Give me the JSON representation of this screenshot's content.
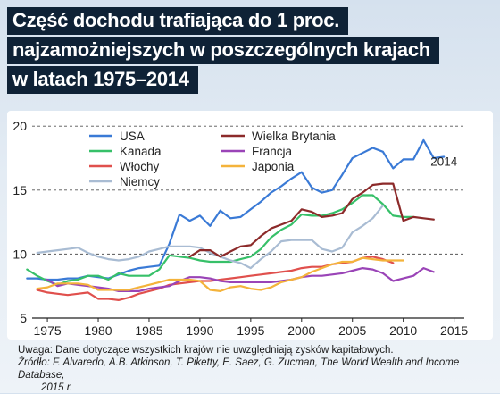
{
  "title_lines": [
    "Część dochodu trafiająca do 1 proc.",
    "najzamożniejszych w poszczególnych krajach",
    "w latach 1975–2014"
  ],
  "note": "Uwaga: Dane dotyczące wszystkich krajów nie uwzględniają zysków kapitałowych.",
  "source_line1": "Źródło: F. Alvaredo, A.B. Atkinson, T. Piketty, E. Saez, G. Zucman, The World Wealth and Income Database,",
  "source_line2": "2015 r.",
  "chart_data": {
    "type": "line",
    "x_ticks": [
      "1975",
      "1980",
      "1985",
      "1990",
      "1995",
      "2000",
      "2005",
      "2010",
      "2015"
    ],
    "y_ticks": [
      "5",
      "10",
      "15",
      "20"
    ],
    "xlim": [
      1973.5,
      2016
    ],
    "ylim": [
      5,
      20.5
    ],
    "grid": "dashed horizontal",
    "legend": "top-left",
    "annotation": "2014",
    "series": [
      {
        "name": "USA",
        "color": "#3a7ad6",
        "x": [
          1973,
          1974,
          1975,
          1976,
          1977,
          1978,
          1979,
          1980,
          1981,
          1982,
          1983,
          1984,
          1985,
          1986,
          1987,
          1988,
          1989,
          1990,
          1991,
          1992,
          1993,
          1994,
          1995,
          1996,
          1997,
          1998,
          1999,
          2000,
          2001,
          2002,
          2003,
          2004,
          2005,
          2006,
          2007,
          2008,
          2009,
          2010,
          2011,
          2012,
          2013,
          2014
        ],
        "y": [
          8.1,
          8.1,
          8.0,
          8.0,
          8.1,
          8.1,
          8.3,
          8.2,
          8.1,
          8.4,
          8.7,
          8.9,
          9.0,
          9.1,
          10.8,
          13.1,
          12.6,
          13.0,
          12.2,
          13.4,
          12.8,
          12.9,
          13.5,
          14.1,
          14.8,
          15.3,
          15.9,
          16.4,
          15.2,
          14.8,
          15.0,
          16.2,
          17.5,
          17.9,
          18.3,
          18.0,
          16.7,
          17.4,
          17.4,
          18.9,
          17.5,
          17.6
        ]
      },
      {
        "name": "Kanada",
        "color": "#37c069",
        "x": [
          1973,
          1974,
          1975,
          1976,
          1977,
          1978,
          1979,
          1980,
          1981,
          1982,
          1983,
          1984,
          1985,
          1986,
          1987,
          1988,
          1989,
          1990,
          1991,
          1992,
          1993,
          1994,
          1995,
          1996,
          1997,
          1998,
          1999,
          2000,
          2001,
          2002,
          2003,
          2004,
          2005,
          2006,
          2007,
          2008,
          2009,
          2010,
          2011
        ],
        "y": [
          8.8,
          8.3,
          7.9,
          7.6,
          7.9,
          8.0,
          8.3,
          8.3,
          8.0,
          8.5,
          8.3,
          8.3,
          8.3,
          8.8,
          9.9,
          9.8,
          9.7,
          9.5,
          9.4,
          9.4,
          9.4,
          9.6,
          9.8,
          10.4,
          11.3,
          11.9,
          12.3,
          13.1,
          13.0,
          13.0,
          13.2,
          13.5,
          14.0,
          14.6,
          14.6,
          13.9,
          13.0,
          12.9,
          12.9
        ]
      },
      {
        "name": "Włochy",
        "color": "#e0504d",
        "x": [
          1974,
          1975,
          1976,
          1977,
          1978,
          1979,
          1980,
          1981,
          1982,
          1983,
          1984,
          1985,
          1986,
          1987,
          1988,
          1989,
          1990,
          1991,
          1992,
          1993,
          1994,
          1995,
          1996,
          1997,
          1998,
          1999,
          2000,
          2001,
          2002,
          2003,
          2004,
          2005,
          2006,
          2007,
          2008,
          2009
        ],
        "y": [
          7.2,
          7.0,
          6.9,
          6.8,
          6.9,
          7.0,
          6.5,
          6.5,
          6.4,
          6.6,
          6.9,
          7.1,
          7.3,
          7.6,
          7.7,
          7.8,
          7.9,
          7.9,
          8.0,
          8.1,
          8.2,
          8.3,
          8.4,
          8.5,
          8.6,
          8.7,
          8.9,
          9.0,
          9.0,
          9.2,
          9.3,
          9.4,
          9.7,
          9.8,
          9.6,
          9.3
        ]
      },
      {
        "name": "Niemcy",
        "color": "#a9bcd3",
        "x": [
          1974,
          1975,
          1976,
          1977,
          1978,
          1979,
          1980,
          1981,
          1982,
          1983,
          1984,
          1985,
          1986,
          1987,
          1988,
          1989,
          1990,
          1991,
          1992,
          1993,
          1994,
          1995,
          1996,
          1997,
          1998,
          1999,
          2000,
          2001,
          2002,
          2003,
          2004,
          2005,
          2006,
          2007,
          2008
        ],
        "y": [
          10.1,
          10.2,
          10.3,
          10.4,
          10.5,
          10.1,
          9.8,
          9.6,
          9.5,
          9.6,
          9.8,
          10.2,
          10.4,
          10.6,
          10.6,
          10.6,
          10.5,
          10.1,
          9.8,
          9.5,
          9.3,
          8.9,
          9.6,
          10.2,
          11.0,
          11.1,
          11.1,
          11.1,
          10.4,
          10.2,
          10.5,
          11.7,
          12.2,
          12.8,
          13.8
        ]
      },
      {
        "name": "Wielka Brytania",
        "color": "#8c2a2a",
        "x": [
          1989,
          1990,
          1991,
          1992,
          1993,
          1994,
          1995,
          1996,
          1997,
          1998,
          1999,
          2000,
          2001,
          2002,
          2003,
          2004,
          2005,
          2006,
          2007,
          2008,
          2009,
          2010,
          2011,
          2012,
          2013
        ],
        "y": [
          9.8,
          10.3,
          10.3,
          9.8,
          10.2,
          10.6,
          10.7,
          11.4,
          12.0,
          12.3,
          12.6,
          13.5,
          13.3,
          12.9,
          13.0,
          13.2,
          14.3,
          14.8,
          15.4,
          15.5,
          15.5,
          12.6,
          12.9,
          12.8,
          12.7
        ]
      },
      {
        "name": "Francja",
        "color": "#9a44b7",
        "x": [
          1975,
          1976,
          1977,
          1978,
          1979,
          1980,
          1981,
          1982,
          1983,
          1984,
          1985,
          1986,
          1987,
          1988,
          1989,
          1990,
          1991,
          1992,
          1993,
          1994,
          1995,
          1996,
          1997,
          1998,
          1999,
          2000,
          2001,
          2002,
          2003,
          2004,
          2005,
          2006,
          2007,
          2008,
          2009,
          2010,
          2011,
          2012,
          2013
        ],
        "y": [
          8.0,
          7.5,
          7.7,
          7.6,
          7.5,
          7.4,
          7.3,
          7.1,
          7.1,
          7.1,
          7.3,
          7.4,
          7.5,
          7.9,
          8.2,
          8.2,
          8.1,
          7.9,
          7.8,
          7.8,
          7.8,
          7.8,
          7.8,
          7.9,
          8.0,
          8.2,
          8.3,
          8.3,
          8.4,
          8.5,
          8.7,
          8.9,
          8.8,
          8.5,
          7.9,
          8.1,
          8.3,
          8.9,
          8.6
        ]
      },
      {
        "name": "Japonia",
        "color": "#f4b33b",
        "x": [
          1974,
          1975,
          1976,
          1977,
          1978,
          1979,
          1980,
          1981,
          1982,
          1983,
          1984,
          1985,
          1986,
          1987,
          1988,
          1989,
          1990,
          1991,
          1992,
          1993,
          1994,
          1995,
          1996,
          1997,
          1998,
          1999,
          2000,
          2001,
          2002,
          2003,
          2004,
          2005,
          2006,
          2007,
          2008,
          2009,
          2010
        ],
        "y": [
          7.3,
          7.4,
          7.7,
          7.7,
          7.7,
          7.6,
          7.2,
          7.2,
          7.2,
          7.2,
          7.4,
          7.6,
          7.8,
          8.0,
          8.0,
          8.0,
          7.9,
          7.2,
          7.1,
          7.4,
          7.5,
          7.3,
          7.2,
          7.4,
          7.8,
          8.0,
          8.2,
          8.6,
          8.9,
          9.2,
          9.4,
          9.4,
          9.7,
          9.6,
          9.5,
          9.5,
          9.5
        ]
      }
    ]
  }
}
